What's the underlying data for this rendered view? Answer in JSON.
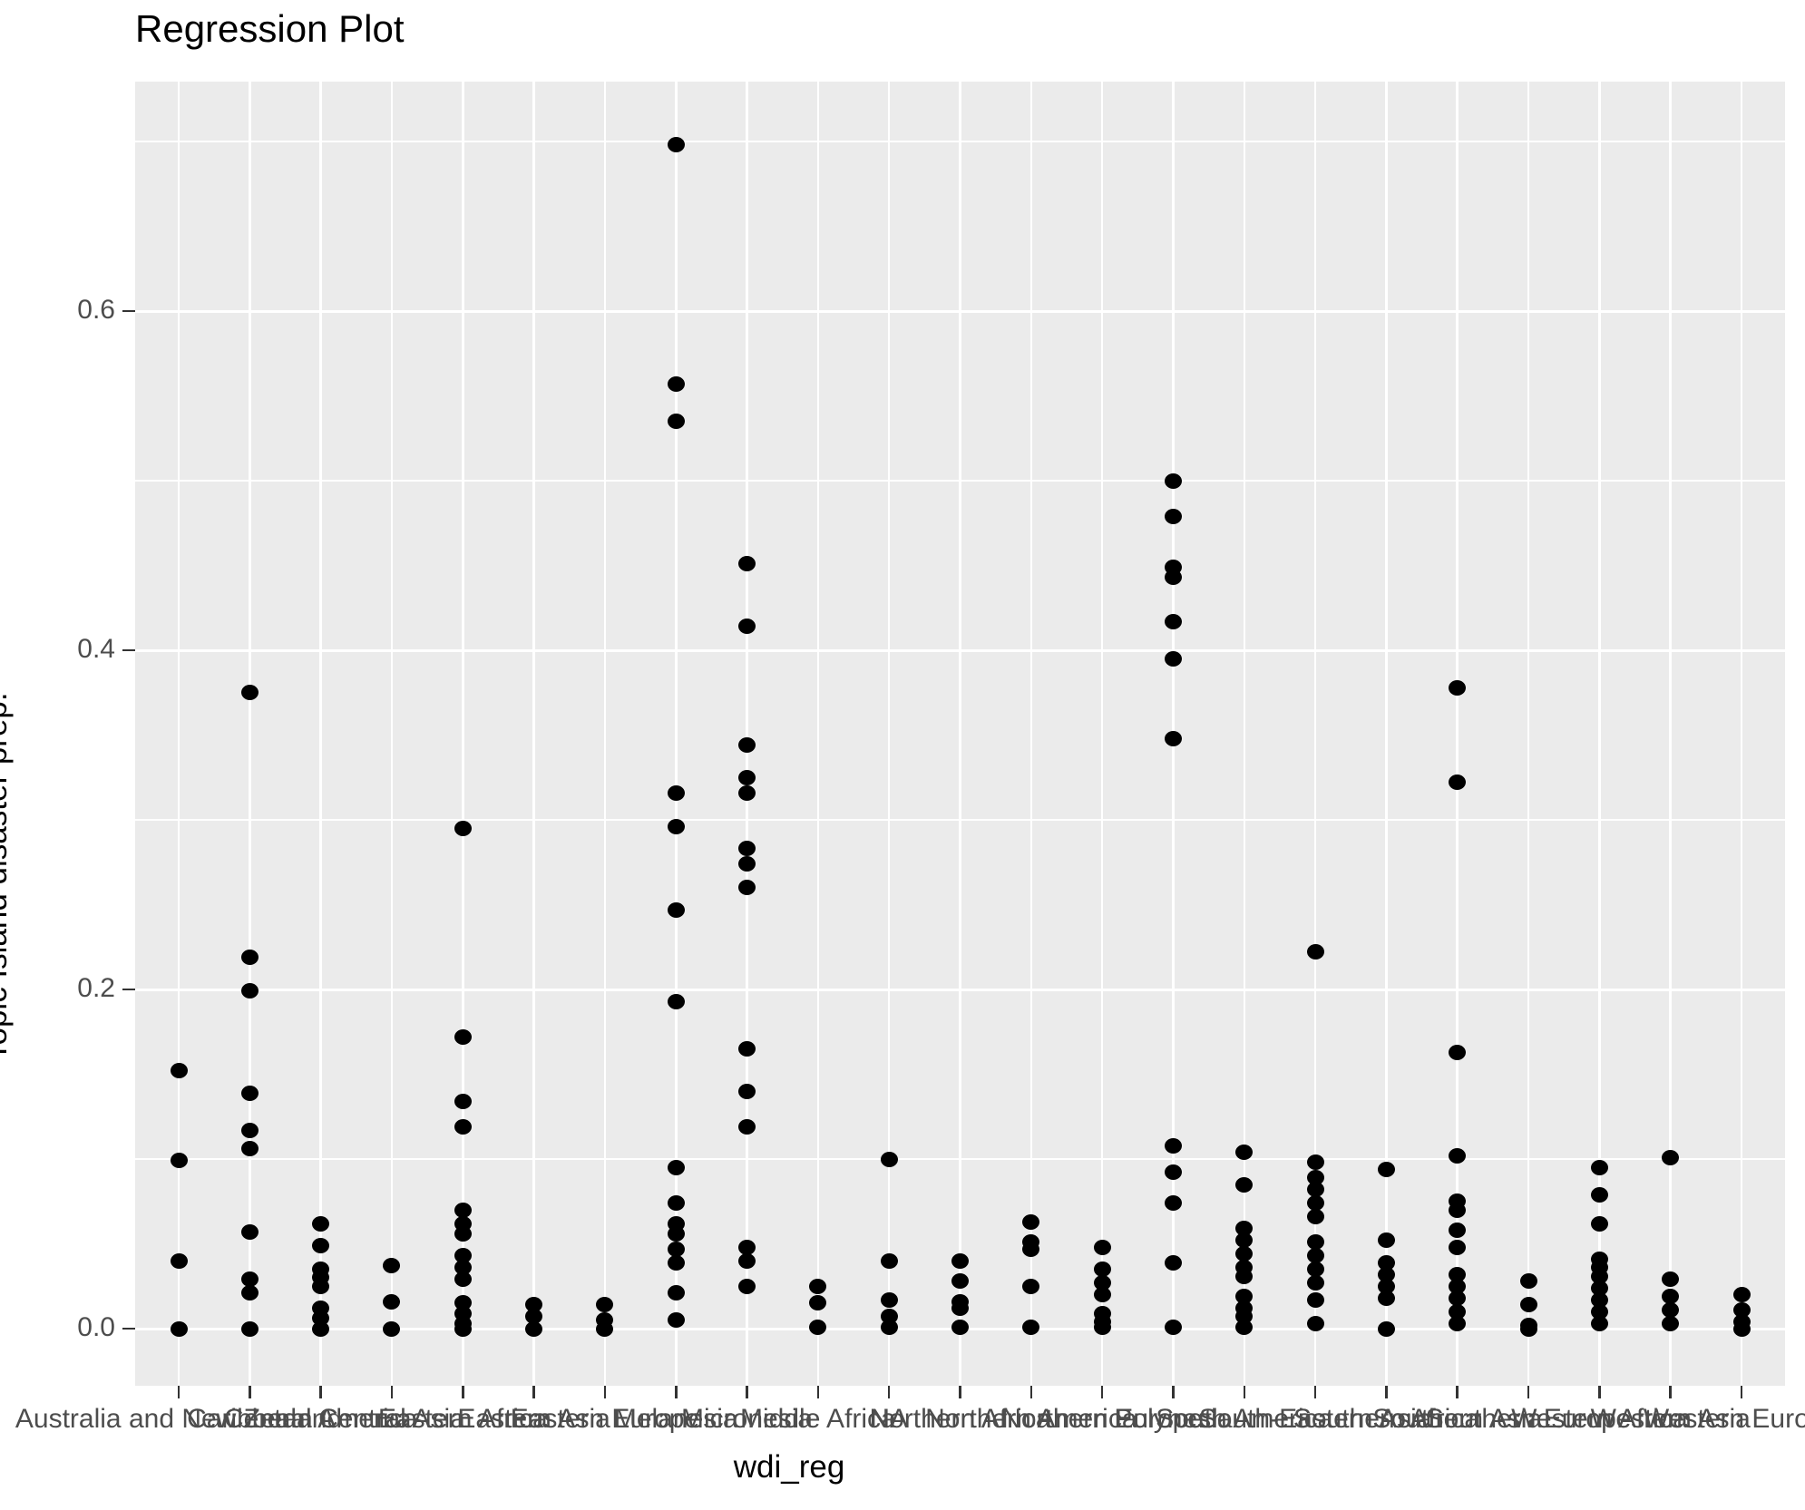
{
  "title": "Regression Plot",
  "colors": {
    "panel_background": "#EBEBEB",
    "gridline": "#ffffff",
    "point": "#000000",
    "tick_text": "#4D4D4D",
    "tick_mark": "#333333",
    "title_text": "#000000"
  },
  "chart_data": {
    "type": "scatter",
    "title": "Regression Plot",
    "xlabel": "wdi_reg",
    "ylabel": "Topic Island disaster prep.",
    "ylim": [
      -0.034,
      0.735
    ],
    "grid": "on",
    "y_major_ticks": [
      0.0,
      0.2,
      0.4,
      0.6
    ],
    "y_major_tick_labels": [
      "0.0",
      "0.2",
      "0.4",
      "0.6"
    ],
    "y_minor_gridlines": [
      0.1,
      0.3,
      0.5,
      0.7
    ],
    "categories": [
      "Australia and New Zealand",
      "Caribbean",
      "Central America",
      "Central Asia",
      "Eastern Africa",
      "Eastern Asia",
      "Eastern Europe",
      "Melanesia",
      "Micronesia",
      "Middle Africa",
      "NA",
      "Northern Africa",
      "Northern America",
      "Northern Europe",
      "Polynesia",
      "South America",
      "South-Eastern Asia",
      "Southern Africa",
      "Southern Asia",
      "Southern Europe",
      "Western Africa",
      "Western Asia",
      "Western Europe"
    ],
    "series": [
      {
        "region": "Australia and New Zealand",
        "values": [
          0.152,
          0.099,
          0.04,
          0.0
        ]
      },
      {
        "region": "Caribbean",
        "values": [
          0.375,
          0.219,
          0.199,
          0.139,
          0.117,
          0.106,
          0.057,
          0.029,
          0.021,
          0.0
        ]
      },
      {
        "region": "Central America",
        "values": [
          0.062,
          0.049,
          0.035,
          0.03,
          0.025,
          0.012,
          0.006,
          0.0
        ]
      },
      {
        "region": "Central Asia",
        "values": [
          0.037,
          0.016,
          0.0
        ]
      },
      {
        "region": "Eastern Africa",
        "values": [
          0.295,
          0.172,
          0.134,
          0.119,
          0.07,
          0.062,
          0.056,
          0.043,
          0.036,
          0.029,
          0.015,
          0.009,
          0.003,
          0.0
        ]
      },
      {
        "region": "Eastern Asia",
        "values": [
          0.014,
          0.007,
          0.0
        ]
      },
      {
        "region": "Eastern Europe",
        "values": [
          0.014,
          0.005,
          0.0
        ]
      },
      {
        "region": "Melanesia",
        "values": [
          0.698,
          0.557,
          0.535,
          0.316,
          0.296,
          0.247,
          0.193,
          0.095,
          0.074,
          0.062,
          0.056,
          0.047,
          0.039,
          0.021,
          0.005
        ]
      },
      {
        "region": "Micronesia",
        "values": [
          0.451,
          0.414,
          0.344,
          0.325,
          0.316,
          0.283,
          0.274,
          0.26,
          0.165,
          0.14,
          0.119,
          0.048,
          0.04,
          0.025
        ]
      },
      {
        "region": "Middle Africa",
        "values": [
          0.025,
          0.015,
          0.001
        ]
      },
      {
        "region": "NA",
        "values": [
          0.1,
          0.04,
          0.017,
          0.007,
          0.001
        ]
      },
      {
        "region": "Northern Africa",
        "values": [
          0.04,
          0.028,
          0.016,
          0.012,
          0.001
        ]
      },
      {
        "region": "Northern America",
        "values": [
          0.063,
          0.051,
          0.047,
          0.025,
          0.001
        ]
      },
      {
        "region": "Northern Europe",
        "values": [
          0.048,
          0.035,
          0.027,
          0.02,
          0.009,
          0.004,
          0.001
        ]
      },
      {
        "region": "Polynesia",
        "values": [
          0.5,
          0.479,
          0.449,
          0.443,
          0.417,
          0.395,
          0.348,
          0.108,
          0.092,
          0.074,
          0.039,
          0.001
        ]
      },
      {
        "region": "South America",
        "values": [
          0.104,
          0.085,
          0.059,
          0.052,
          0.044,
          0.036,
          0.031,
          0.019,
          0.012,
          0.007,
          0.001
        ]
      },
      {
        "region": "South-Eastern Asia",
        "values": [
          0.222,
          0.098,
          0.089,
          0.082,
          0.074,
          0.066,
          0.051,
          0.043,
          0.035,
          0.027,
          0.017,
          0.003
        ]
      },
      {
        "region": "Southern Africa",
        "values": [
          0.094,
          0.052,
          0.039,
          0.032,
          0.025,
          0.018,
          0.0
        ]
      },
      {
        "region": "Southern Asia",
        "values": [
          0.378,
          0.322,
          0.163,
          0.102,
          0.075,
          0.07,
          0.058,
          0.048,
          0.032,
          0.025,
          0.018,
          0.01,
          0.003
        ]
      },
      {
        "region": "Southern Europe",
        "values": [
          0.028,
          0.014,
          0.002,
          0.0
        ]
      },
      {
        "region": "Western Africa",
        "values": [
          0.095,
          0.079,
          0.062,
          0.041,
          0.036,
          0.031,
          0.024,
          0.017,
          0.01,
          0.003
        ]
      },
      {
        "region": "Western Asia",
        "values": [
          0.101,
          0.029,
          0.019,
          0.011,
          0.003
        ]
      },
      {
        "region": "Western Europe",
        "values": [
          0.02,
          0.011,
          0.004,
          0.0
        ]
      }
    ]
  }
}
